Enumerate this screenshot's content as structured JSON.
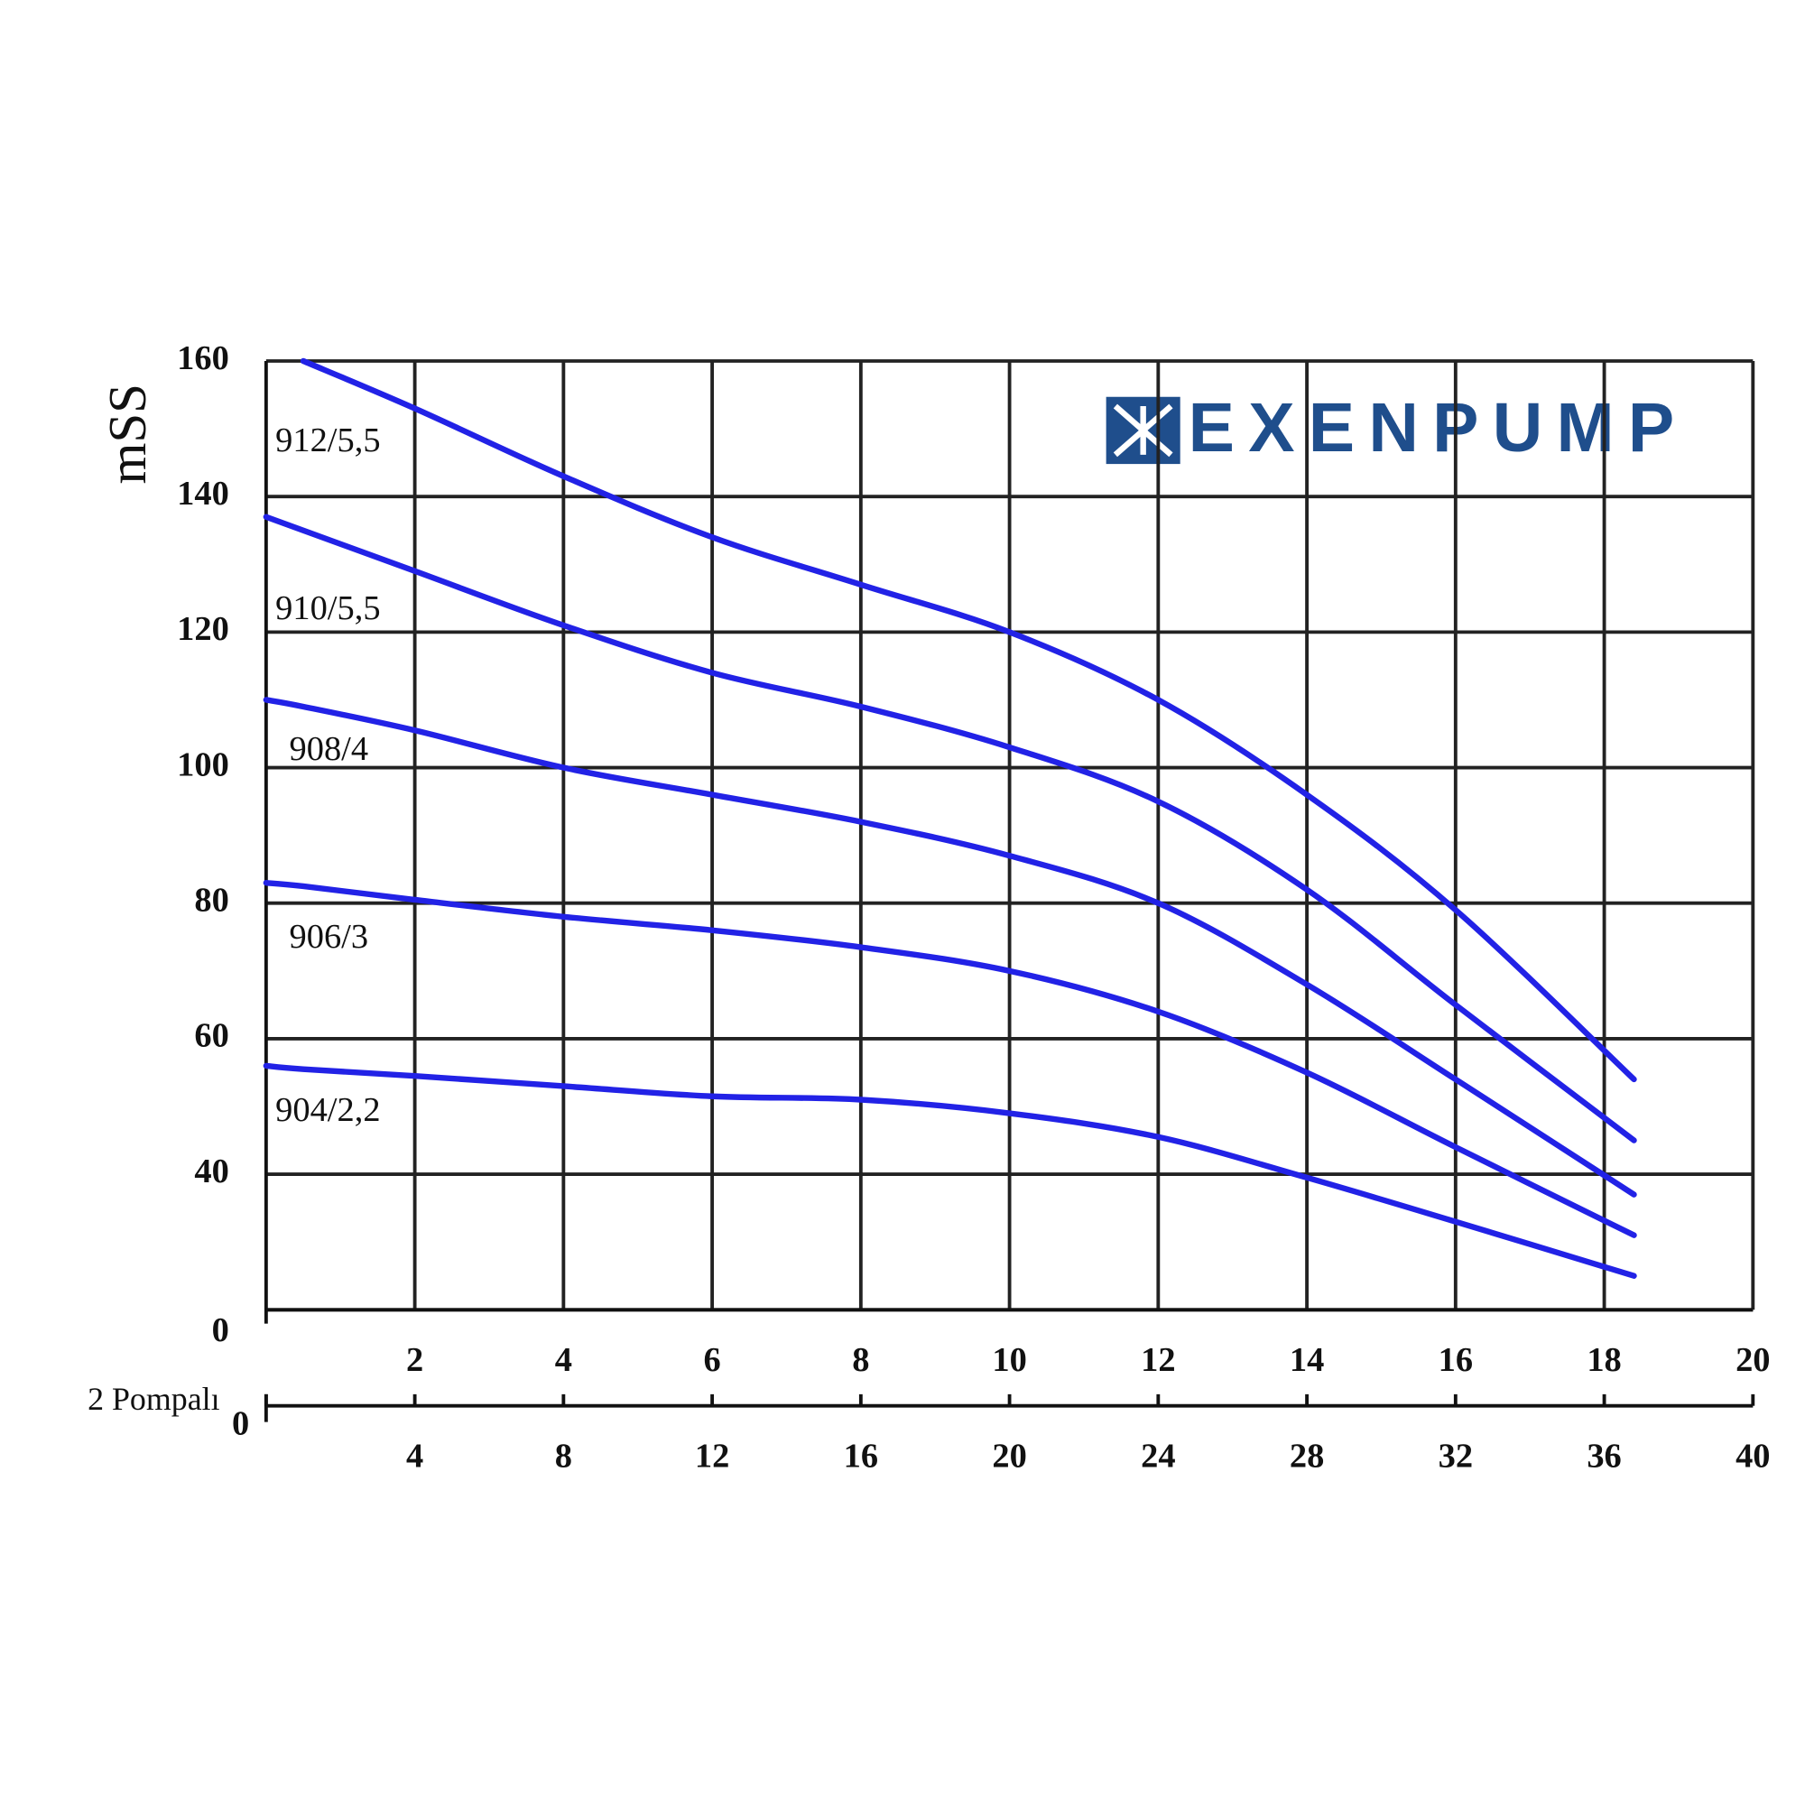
{
  "chart_data": {
    "type": "line",
    "logo": "EXENPUMP",
    "y_label": "mSS",
    "x2_label": "2 Pompalı",
    "x": [
      0,
      0.5,
      2,
      4,
      6,
      8,
      10,
      12,
      14,
      16,
      18.4
    ],
    "series": [
      {
        "name": "912/5,5",
        "color": "#2222e6",
        "values": [
          null,
          160,
          153,
          143,
          134,
          127,
          120,
          110,
          96,
          79,
          54
        ]
      },
      {
        "name": "910/5,5",
        "color": "#2222e6",
        "values": [
          137,
          135,
          129,
          121,
          114,
          109,
          103,
          95,
          82,
          65,
          45
        ]
      },
      {
        "name": "908/4",
        "color": "#2222e6",
        "values": [
          110,
          109,
          105.5,
          100,
          96,
          92,
          87,
          80,
          68,
          54,
          37
        ]
      },
      {
        "name": "906/3",
        "color": "#2222e6",
        "values": [
          83,
          82.5,
          80.5,
          78,
          76,
          73.5,
          70,
          64,
          55,
          44,
          31
        ]
      },
      {
        "name": "904/2,2",
        "color": "#2222e6",
        "values": [
          56,
          55.5,
          54.5,
          53,
          51.5,
          51,
          49,
          45.5,
          39.5,
          33,
          25
        ]
      }
    ],
    "xlim": [
      0,
      20
    ],
    "xticks": [
      2,
      4,
      6,
      8,
      10,
      12,
      14,
      16,
      18,
      20
    ],
    "x2lim": [
      0,
      40
    ],
    "x2ticks": [
      0,
      4,
      8,
      12,
      16,
      20,
      24,
      28,
      32,
      36,
      40
    ],
    "ylim": [
      20,
      160
    ],
    "yticks": [
      {
        "value": 20,
        "label": "0"
      },
      40,
      60,
      80,
      100,
      120,
      140,
      160
    ],
    "grid": true
  }
}
